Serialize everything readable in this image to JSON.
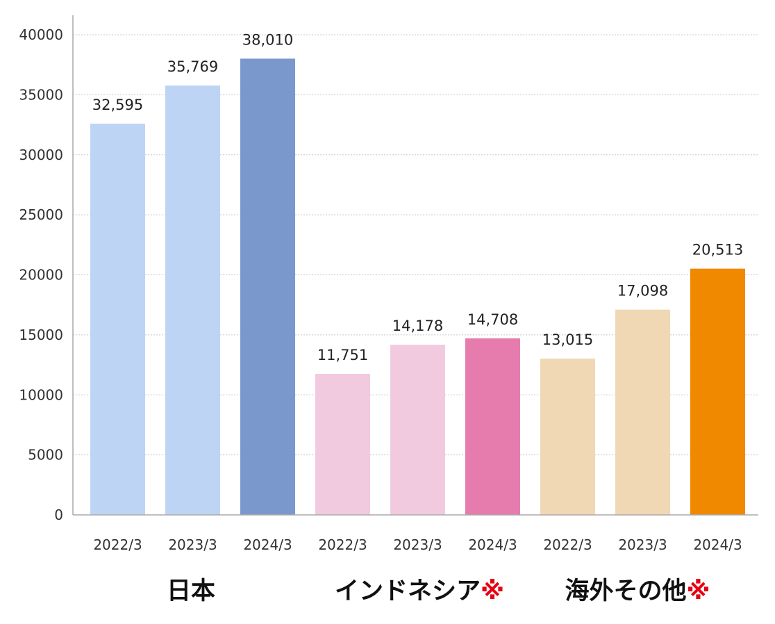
{
  "chart_data": {
    "type": "bar",
    "ylim": [
      0,
      40000
    ],
    "yticks": [
      0,
      5000,
      10000,
      15000,
      20000,
      25000,
      30000,
      35000,
      40000
    ],
    "grid": true,
    "bars": [
      {
        "group": "日本",
        "category": "2022/3",
        "value": 32595,
        "label": "32,595",
        "color": "#bed4f5"
      },
      {
        "group": "日本",
        "category": "2023/3",
        "value": 35769,
        "label": "35,769",
        "color": "#bed4f5"
      },
      {
        "group": "日本",
        "category": "2024/3",
        "value": 38010,
        "label": "38,010",
        "color": "#7b98cc"
      },
      {
        "group": "インドネシア",
        "category": "2022/3",
        "value": 11751,
        "label": "11,751",
        "color": "#f2cae0"
      },
      {
        "group": "インドネシア",
        "category": "2023/3",
        "value": 14178,
        "label": "14,178",
        "color": "#f2cae0"
      },
      {
        "group": "インドネシア",
        "category": "2024/3",
        "value": 14708,
        "label": "14,708",
        "color": "#e67cae"
      },
      {
        "group": "海外その他",
        "category": "2022/3",
        "value": 13015,
        "label": "13,015",
        "color": "#f0d8b4"
      },
      {
        "group": "海外その他",
        "category": "2023/3",
        "value": 17098,
        "label": "17,098",
        "color": "#f0d8b4"
      },
      {
        "group": "海外その他",
        "category": "2024/3",
        "value": 20513,
        "label": "20,513",
        "color": "#f08800"
      }
    ],
    "groups": [
      {
        "name": "日本",
        "mark": ""
      },
      {
        "name": "インドネシア",
        "mark": "※"
      },
      {
        "name": "海外その他",
        "mark": "※"
      }
    ]
  }
}
